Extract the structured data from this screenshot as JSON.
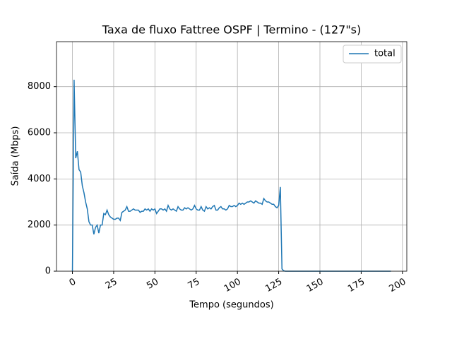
{
  "chart_data": {
    "type": "line",
    "title": "Taxa de fluxo Fattree OSPF | Termino - (127\"s)",
    "x_label": "Tempo (segundos)",
    "y_label": "Saída (Mbps)",
    "x": [
      0,
      1,
      2,
      3,
      4,
      5,
      6,
      7,
      8,
      9,
      10,
      11,
      12,
      13,
      14,
      15,
      16,
      17,
      18,
      19,
      20,
      21,
      22,
      23,
      24,
      25,
      26,
      27,
      28,
      29,
      30,
      31,
      32,
      33,
      34,
      35,
      36,
      37,
      38,
      39,
      40,
      41,
      42,
      43,
      44,
      45,
      46,
      47,
      48,
      49,
      50,
      51,
      52,
      53,
      54,
      55,
      56,
      57,
      58,
      59,
      60,
      61,
      62,
      63,
      64,
      65,
      66,
      67,
      68,
      69,
      70,
      71,
      72,
      73,
      74,
      75,
      76,
      77,
      78,
      79,
      80,
      81,
      82,
      83,
      84,
      85,
      86,
      87,
      88,
      89,
      90,
      91,
      92,
      93,
      94,
      95,
      96,
      97,
      98,
      99,
      100,
      101,
      102,
      103,
      104,
      105,
      106,
      107,
      108,
      109,
      110,
      111,
      112,
      113,
      114,
      115,
      116,
      117,
      118,
      119,
      120,
      121,
      122,
      123,
      124,
      125,
      126,
      127,
      128,
      129,
      130,
      193
    ],
    "series": [
      {
        "name": "total",
        "color": "#1f77b4",
        "values": [
          0,
          8300,
          4900,
          5200,
          4400,
          4300,
          3700,
          3400,
          3000,
          2700,
          2150,
          2000,
          2000,
          1600,
          1900,
          2000,
          1650,
          2000,
          2000,
          2500,
          2450,
          2650,
          2450,
          2350,
          2300,
          2250,
          2250,
          2300,
          2300,
          2200,
          2550,
          2600,
          2650,
          2800,
          2600,
          2600,
          2650,
          2700,
          2650,
          2650,
          2650,
          2550,
          2600,
          2600,
          2700,
          2650,
          2700,
          2600,
          2700,
          2650,
          2700,
          2500,
          2600,
          2700,
          2700,
          2650,
          2700,
          2600,
          2850,
          2700,
          2650,
          2700,
          2650,
          2600,
          2800,
          2700,
          2650,
          2650,
          2750,
          2700,
          2750,
          2700,
          2650,
          2700,
          2850,
          2700,
          2650,
          2650,
          2800,
          2650,
          2600,
          2800,
          2700,
          2750,
          2700,
          2800,
          2850,
          2650,
          2650,
          2750,
          2800,
          2700,
          2700,
          2650,
          2700,
          2850,
          2800,
          2800,
          2850,
          2800,
          2850,
          2950,
          2900,
          2950,
          2900,
          2950,
          3000,
          3000,
          3050,
          3000,
          2950,
          3050,
          3000,
          2950,
          2950,
          2900,
          3150,
          3050,
          3000,
          3000,
          2950,
          2900,
          2900,
          2800,
          2750,
          2850,
          3650,
          100,
          20,
          0,
          0,
          0
        ]
      }
    ],
    "xlim": [
      -9.65,
      202.65
    ],
    "ylim": [
      0,
      9950
    ],
    "xticks": [
      0,
      25,
      50,
      75,
      100,
      125,
      150,
      175,
      200
    ],
    "yticks": [
      0,
      2000,
      4000,
      6000,
      8000
    ],
    "grid": true,
    "legend": "upper right"
  }
}
